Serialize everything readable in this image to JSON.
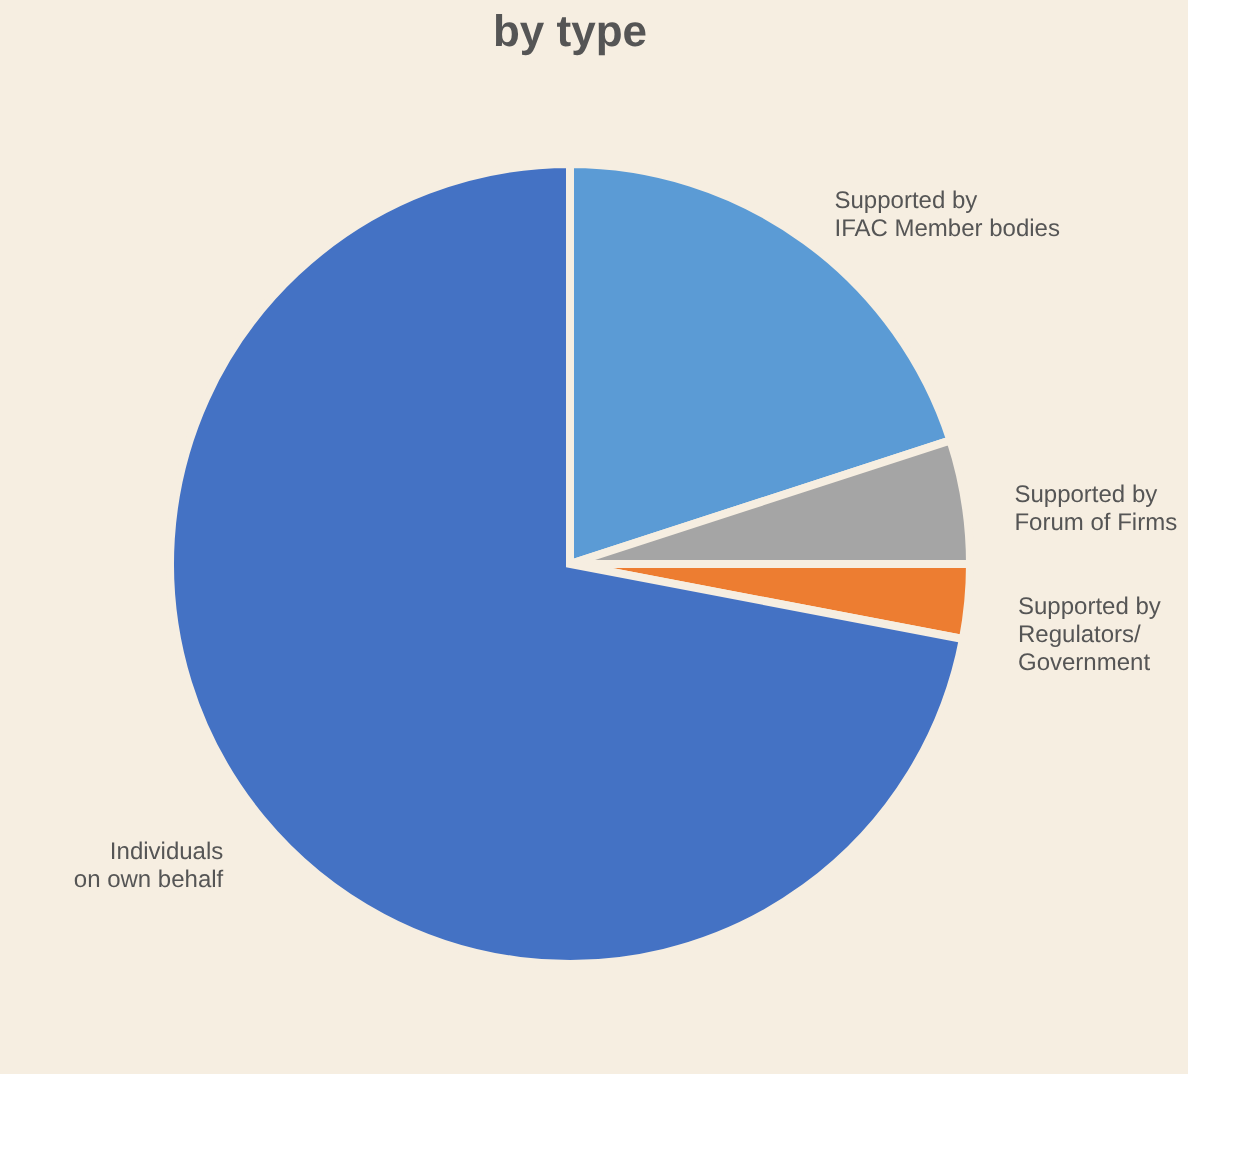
{
  "chart_data": {
    "type": "pie",
    "title": "by type",
    "categories": [
      "Supported by\nIFAC Member bodies",
      "Supported by\nForum of Firms",
      "Supported by\nRegulators/\nGovernment",
      "Individuals\non own behalf"
    ],
    "values": [
      20,
      5,
      3,
      72
    ],
    "colors": [
      "#5b9bd5",
      "#a5a5a5",
      "#ed7d31",
      "#4472c4"
    ],
    "legend": false
  }
}
